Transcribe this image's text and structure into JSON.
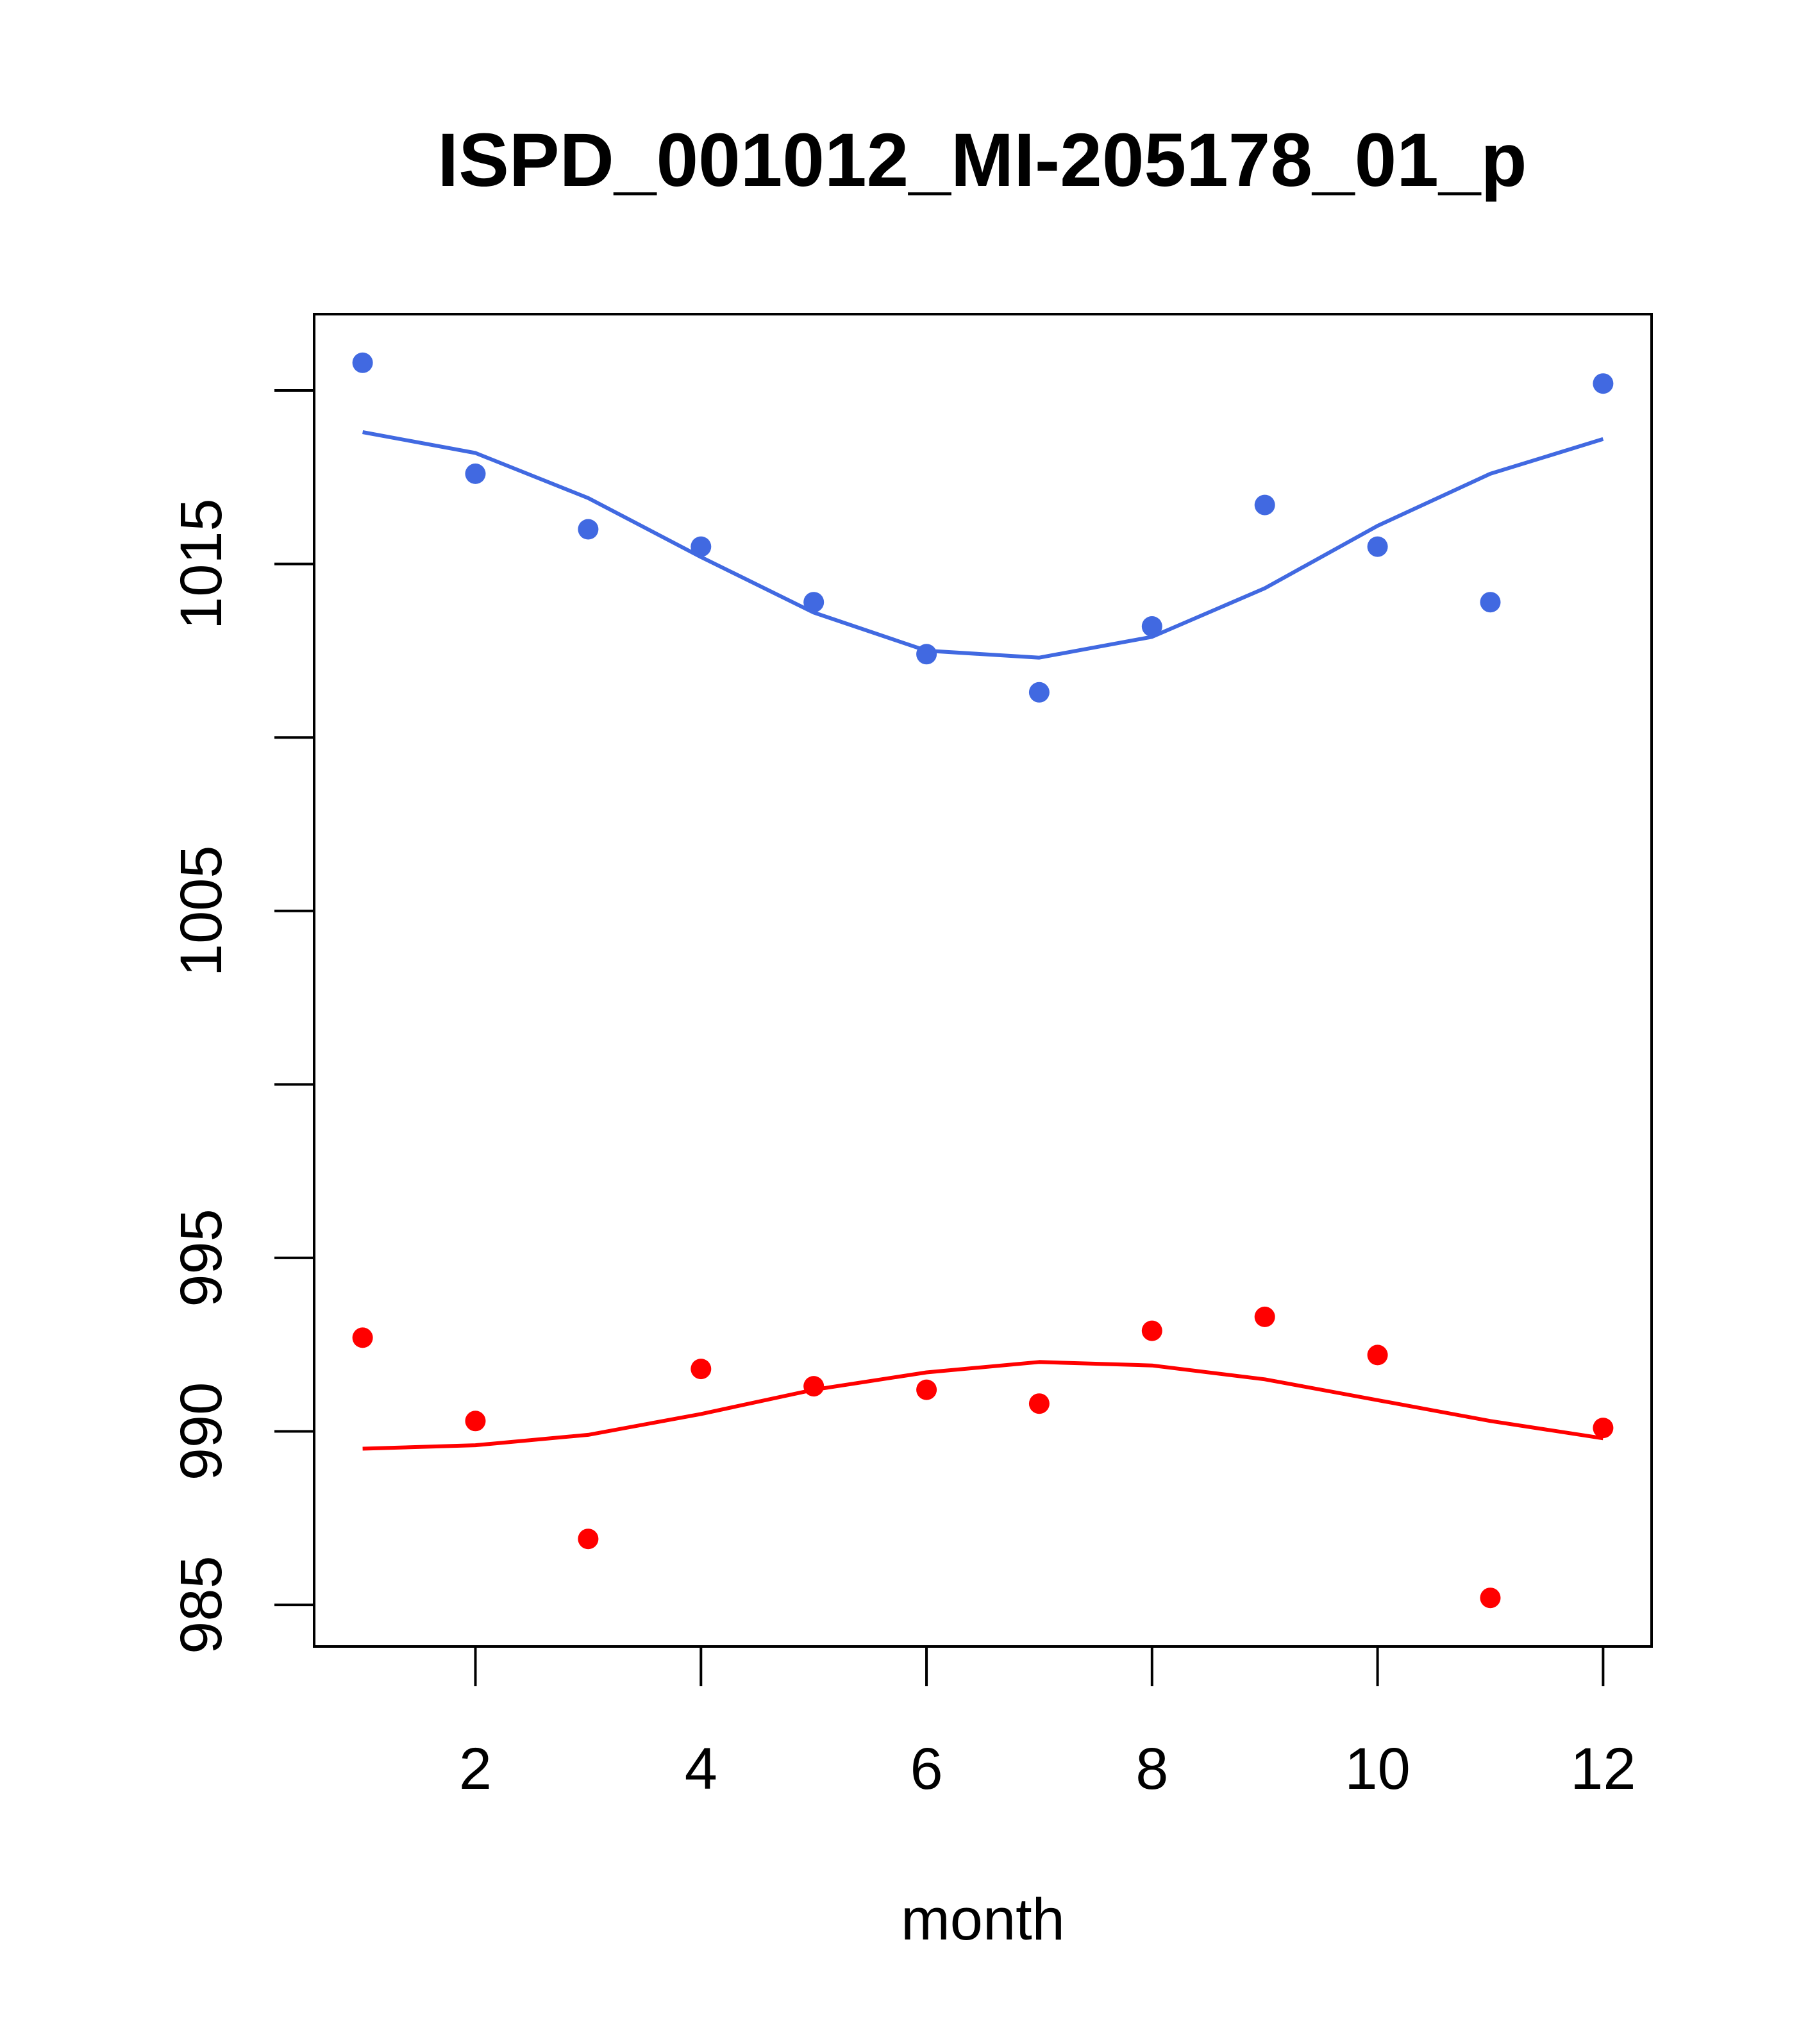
{
  "chart_data": {
    "type": "scatter",
    "title": "ISPD_001012_MI-205178_01_p",
    "xlabel": "month",
    "ylabel": "",
    "xlim": [
      0.57,
      12.43
    ],
    "ylim": [
      983.8,
      1022.2
    ],
    "x_ticks": [
      2,
      4,
      6,
      8,
      10,
      12
    ],
    "y_ticks": [
      985,
      990,
      995,
      1000,
      1005,
      1010,
      1015,
      1020
    ],
    "y_tick_labels": [
      "985",
      "990",
      "995",
      "",
      "1005",
      "",
      "1015",
      ""
    ],
    "grid": false,
    "legend": "none",
    "series": [
      {
        "color": "#4169E1",
        "points": {
          "x": [
            1,
            2,
            3,
            4,
            5,
            6,
            7,
            8,
            9,
            10,
            11,
            12
          ],
          "y": [
            1020.8,
            1017.6,
            1016.0,
            1015.5,
            1013.9,
            1012.4,
            1011.3,
            1013.2,
            1016.7,
            1015.5,
            1013.9,
            1020.2
          ]
        },
        "fit": {
          "x": [
            1,
            2,
            3,
            4,
            5,
            6,
            7,
            8,
            9,
            10,
            11,
            12
          ],
          "y": [
            1018.8,
            1018.2,
            1016.9,
            1015.2,
            1013.6,
            1012.5,
            1012.3,
            1012.9,
            1014.3,
            1016.1,
            1017.6,
            1018.6
          ]
        }
      },
      {
        "color": "#FF0000",
        "points": {
          "x": [
            1,
            2,
            3,
            4,
            5,
            6,
            7,
            8,
            9,
            10,
            11,
            12
          ],
          "y": [
            992.7,
            990.3,
            986.9,
            991.8,
            991.3,
            991.2,
            990.8,
            992.9,
            993.3,
            992.2,
            985.2,
            990.1
          ]
        },
        "fit": {
          "x": [
            1,
            2,
            3,
            4,
            5,
            6,
            7,
            8,
            9,
            10,
            11,
            12
          ],
          "y": [
            989.5,
            989.6,
            989.9,
            990.5,
            991.2,
            991.7,
            992.0,
            991.9,
            991.5,
            990.9,
            990.3,
            989.8
          ]
        }
      }
    ]
  }
}
